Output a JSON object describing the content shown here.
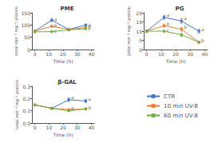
{
  "chart_data": [
    {
      "type": "line",
      "title": "PME",
      "xlabel": "Time (h)",
      "ylabel": "nmol min⁻¹ mg⁻¹ protein",
      "x": [
        0,
        12,
        24,
        36
      ],
      "series": [
        {
          "name": "CTR",
          "color": "#4472c4",
          "values": [
            75,
            120,
            82,
            100
          ],
          "yerr": [
            3,
            6,
            3,
            4
          ]
        },
        {
          "name": "10 min UV-B",
          "color": "#ed7d31",
          "values": [
            75,
            95,
            82,
            90
          ],
          "yerr": [
            3,
            4,
            3,
            3
          ]
        },
        {
          "name": "60 min UV-B",
          "color": "#70ad47",
          "values": [
            72,
            73,
            80,
            85
          ],
          "yerr": [
            3,
            3,
            3,
            3
          ]
        }
      ],
      "xlim": [
        -2,
        42
      ],
      "xticks": [
        0,
        10,
        20,
        30,
        40
      ],
      "ylim": [
        0,
        150
      ],
      "yticks": [
        0,
        50,
        100,
        150
      ],
      "annotations": [
        {
          "x": 12,
          "y": 127,
          "text": "a"
        },
        {
          "x": 12,
          "y": 100,
          "text": "b"
        },
        {
          "x": 12,
          "y": 77,
          "text": "c"
        },
        {
          "x": 36,
          "y": 104,
          "text": "a"
        },
        {
          "x": 36,
          "y": 94,
          "text": "b"
        },
        {
          "x": 36,
          "y": 88,
          "text": "c"
        }
      ],
      "marker": "square",
      "grid": false,
      "legend": "lower right"
    },
    {
      "type": "line",
      "title": "PG",
      "xlabel": "Time (h)",
      "ylabel": "ΔAbs min⁻¹ mg⁻¹ protein",
      "x": [
        0,
        12,
        24,
        36
      ],
      "series": [
        {
          "name": "CTR",
          "color": "#4472c4",
          "values": [
            10,
            17.5,
            15.5,
            10
          ],
          "yerr": [
            0.4,
            1.0,
            1.2,
            1.0
          ]
        },
        {
          "name": "10 min UV-B",
          "color": "#ed7d31",
          "values": [
            10,
            13,
            11,
            4
          ],
          "yerr": [
            0.4,
            0.8,
            1.0,
            0.5
          ]
        },
        {
          "name": "60 min UV-B",
          "color": "#70ad47",
          "values": [
            10,
            10,
            8,
            4
          ],
          "yerr": [
            0.4,
            0.5,
            0.8,
            0.5
          ]
        }
      ],
      "xlim": [
        -2,
        42
      ],
      "xticks": [
        0,
        10,
        20,
        30,
        40
      ],
      "ylim": [
        0,
        20
      ],
      "yticks": [
        0,
        5,
        10,
        15,
        20
      ],
      "annotations": [
        {
          "x": 12,
          "y": 19.0,
          "text": "a"
        },
        {
          "x": 12,
          "y": 14.0,
          "text": "b"
        },
        {
          "x": 12,
          "y": 10.8,
          "text": "c"
        },
        {
          "x": 24,
          "y": 17.0,
          "text": "a"
        },
        {
          "x": 24,
          "y": 12.2,
          "text": "b"
        },
        {
          "x": 36,
          "y": 11.2,
          "text": "a"
        },
        {
          "x": 36,
          "y": 5.0,
          "text": "b"
        }
      ],
      "marker": "square",
      "grid": false,
      "legend": "lower right"
    },
    {
      "type": "line",
      "title": "β-GAL",
      "xlabel": "Time (h)",
      "ylabel": "nmol min⁻¹ mg⁻¹ protein",
      "x": [
        0,
        12,
        24,
        36
      ],
      "series": [
        {
          "name": "CTR",
          "color": "#4472c4",
          "values": [
            0.148,
            0.12,
            0.19,
            0.18
          ],
          "yerr": [
            0.005,
            0.008,
            0.015,
            0.012
          ]
        },
        {
          "name": "10 min UV-B",
          "color": "#ed7d31",
          "values": [
            0.148,
            0.12,
            0.11,
            0.115
          ],
          "yerr": [
            0.005,
            0.007,
            0.007,
            0.008
          ]
        },
        {
          "name": "60 min UV-B",
          "color": "#70ad47",
          "values": [
            0.148,
            0.12,
            0.1,
            0.115
          ],
          "yerr": [
            0.005,
            0.007,
            0.006,
            0.008
          ]
        }
      ],
      "xlim": [
        -2,
        42
      ],
      "xticks": [
        0,
        10,
        20,
        30,
        40
      ],
      "ylim": [
        0.0,
        0.3
      ],
      "yticks": [
        {
          "value": 0.0,
          "label": "0.0"
        },
        0.1,
        0.2,
        0.3
      ],
      "annotations": [
        {
          "x": 24,
          "y": 0.21,
          "text": "a"
        },
        {
          "x": 24,
          "y": 0.118,
          "text": "b"
        },
        {
          "x": 36,
          "y": 0.196,
          "text": "a"
        },
        {
          "x": 36,
          "y": 0.125,
          "text": "b"
        }
      ],
      "marker": "square",
      "grid": false,
      "legend": "lower right"
    }
  ]
}
